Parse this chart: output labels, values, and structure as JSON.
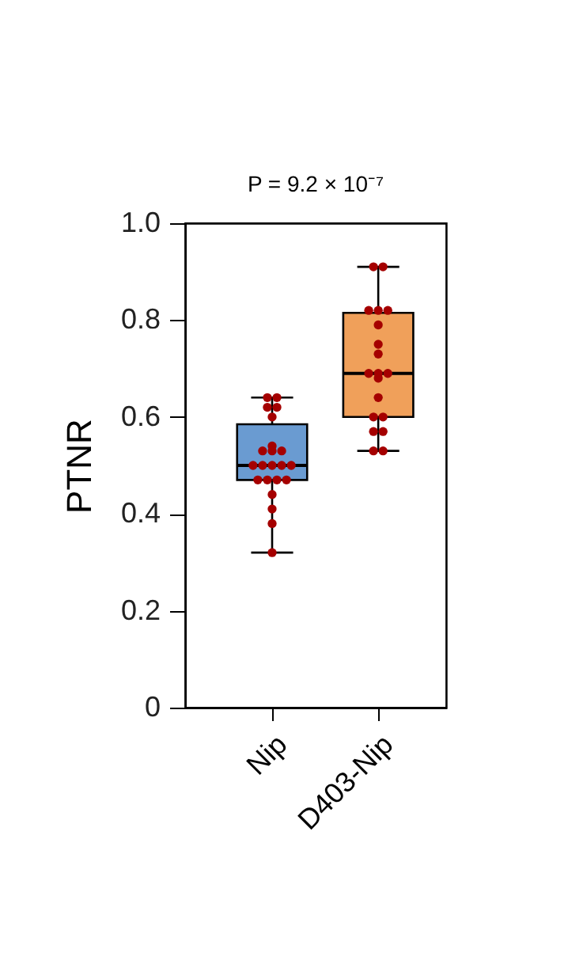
{
  "chart_data": {
    "type": "box",
    "ylabel": "PTNR",
    "annotations": [
      "P = 9.2 × 10⁻⁷"
    ],
    "categories": [
      "Nip",
      "D403-Nip"
    ],
    "colors": [
      "#6a9bd1",
      "#f0a05a"
    ],
    "boxes": [
      {
        "low": 0.32,
        "q1": 0.47,
        "median": 0.5,
        "q3": 0.585,
        "high": 0.64
      },
      {
        "low": 0.53,
        "q1": 0.6,
        "median": 0.69,
        "q3": 0.815,
        "high": 0.91
      }
    ],
    "series": [
      {
        "type": "scatter",
        "color": "#a50000",
        "x": [
          "Nip",
          "Nip",
          "Nip",
          "Nip",
          "Nip",
          "Nip",
          "Nip",
          "Nip",
          "Nip",
          "Nip",
          "Nip",
          "Nip",
          "Nip",
          "Nip",
          "Nip",
          "Nip",
          "Nip",
          "Nip",
          "Nip",
          "Nip",
          "Nip",
          "Nip"
        ],
        "values": [
          0.64,
          0.64,
          0.62,
          0.62,
          0.6,
          0.54,
          0.53,
          0.53,
          0.53,
          0.5,
          0.5,
          0.5,
          0.5,
          0.5,
          0.47,
          0.47,
          0.47,
          0.47,
          0.44,
          0.41,
          0.38,
          0.32
        ]
      },
      {
        "type": "scatter",
        "color": "#a50000",
        "x": [
          "D403-Nip",
          "D403-Nip",
          "D403-Nip",
          "D403-Nip",
          "D403-Nip",
          "D403-Nip",
          "D403-Nip",
          "D403-Nip",
          "D403-Nip",
          "D403-Nip",
          "D403-Nip",
          "D403-Nip",
          "D403-Nip",
          "D403-Nip",
          "D403-Nip",
          "D403-Nip",
          "D403-Nip",
          "D403-Nip",
          "D403-Nip"
        ],
        "values": [
          0.91,
          0.91,
          0.82,
          0.82,
          0.82,
          0.79,
          0.75,
          0.73,
          0.69,
          0.69,
          0.69,
          0.68,
          0.64,
          0.6,
          0.6,
          0.57,
          0.57,
          0.53,
          0.53
        ]
      }
    ],
    "ylim": [
      0,
      1
    ],
    "yticks": [
      {
        "value": 0,
        "label": "0"
      },
      0.2,
      0.4,
      0.6,
      0.8,
      {
        "value": 1,
        "label": "1.0"
      }
    ],
    "grid": false,
    "marker": "circle"
  }
}
